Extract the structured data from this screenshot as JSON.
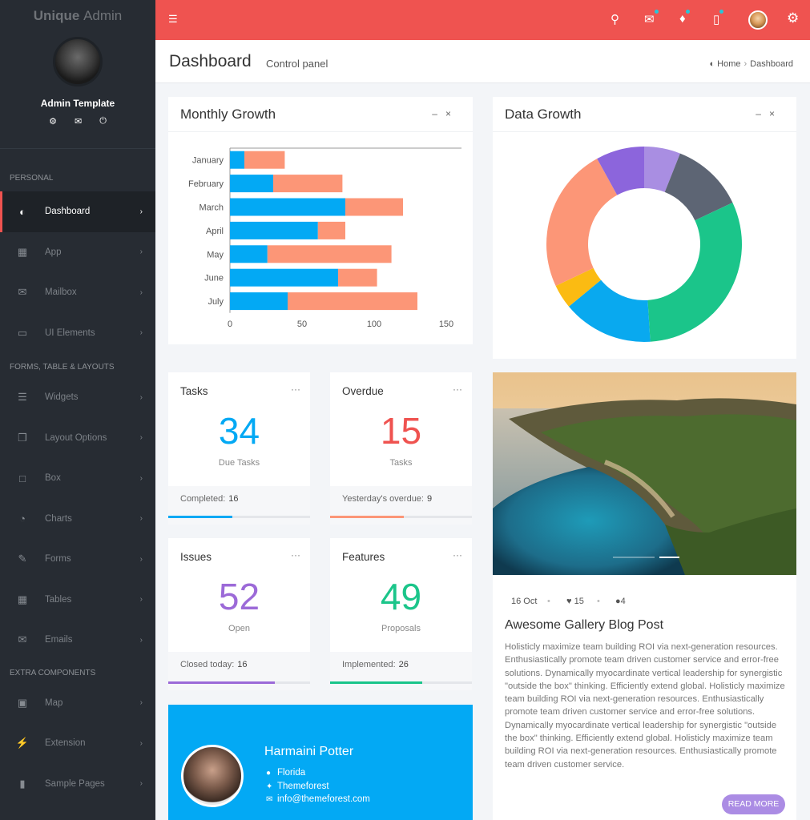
{
  "brand": {
    "name_bold": "Unique",
    "name_light": "Admin"
  },
  "profile": {
    "name": "Admin Template",
    "icons": [
      "gear-icon",
      "mail-icon",
      "power-icon"
    ]
  },
  "sidebar": {
    "sections": [
      "PERSONAL",
      "FORMS, TABLE & LAYOUTS",
      "EXTRA COMPONENTS"
    ],
    "items": [
      {
        "label": "Dashboard",
        "icon": "dashboard-icon",
        "active": true
      },
      {
        "label": "App",
        "icon": "grid-icon"
      },
      {
        "label": "Mailbox",
        "icon": "mail-icon"
      },
      {
        "label": "UI Elements",
        "icon": "laptop-icon"
      },
      {
        "label": "Widgets",
        "icon": "list-icon"
      },
      {
        "label": "Layout Options",
        "icon": "copy-icon"
      },
      {
        "label": "Box",
        "icon": "square-icon"
      },
      {
        "label": "Charts",
        "icon": "pie-icon"
      },
      {
        "label": "Forms",
        "icon": "edit-icon"
      },
      {
        "label": "Tables",
        "icon": "table-icon"
      },
      {
        "label": "Emails",
        "icon": "envelope-open-icon"
      },
      {
        "label": "Map",
        "icon": "map-icon"
      },
      {
        "label": "Extension",
        "icon": "plug-icon"
      },
      {
        "label": "Sample Pages",
        "icon": "file-icon"
      }
    ]
  },
  "topbar": {
    "icons": [
      "menu-icon",
      "search-icon",
      "mail-icon",
      "bell-icon",
      "chat-icon",
      "avatar",
      "gear-icon"
    ]
  },
  "page": {
    "title": "Dashboard",
    "subtitle": "Control panel",
    "breadcrumb": [
      "Home",
      "Dashboard"
    ]
  },
  "monthly_growth": {
    "title": "Monthly Growth"
  },
  "data_growth": {
    "title": "Data Growth"
  },
  "chart_data": [
    {
      "type": "bar",
      "orientation": "horizontal",
      "stacked": true,
      "title": "Monthly Growth",
      "categories": [
        "January",
        "February",
        "March",
        "April",
        "May",
        "June",
        "July"
      ],
      "series": [
        {
          "color": "#03a9f4",
          "values": [
            10,
            30,
            80,
            61,
            26,
            75,
            40
          ]
        },
        {
          "color": "#fc9677",
          "values": [
            28,
            48,
            40,
            19,
            86,
            27,
            90
          ]
        }
      ],
      "xticks": [
        "0",
        "50",
        "100",
        "150"
      ],
      "xlim": [
        0,
        155
      ]
    },
    {
      "type": "pie",
      "donut": true,
      "title": "Data Growth",
      "slices": [
        {
          "value": 6,
          "color": "#a98ee2"
        },
        {
          "value": 12,
          "color": "#5d6574"
        },
        {
          "value": 31,
          "color": "#1bc58a"
        },
        {
          "value": 15,
          "color": "#09a9ef"
        },
        {
          "value": 4,
          "color": "#fbbb12"
        },
        {
          "value": 24,
          "color": "#fc9677"
        },
        {
          "value": 8,
          "color": "#8c65dc"
        }
      ]
    }
  ],
  "stats": [
    {
      "title": "Tasks",
      "number": "34",
      "label": "Due Tasks",
      "foot_label": "Completed:",
      "foot_value": "16",
      "color": "#03a9f4",
      "progress": 0.45
    },
    {
      "title": "Overdue",
      "number": "15",
      "label": "Tasks",
      "foot_label": "Yesterday's overdue:",
      "foot_value": "9",
      "color": "#ef5350",
      "bar_color": "#fc9677",
      "progress": 0.52
    },
    {
      "title": "Issues",
      "number": "52",
      "label": "Open",
      "foot_label": "Closed today:",
      "foot_value": "16",
      "color": "#9c6ad8",
      "progress": 0.75
    },
    {
      "title": "Features",
      "number": "49",
      "label": "Proposals",
      "foot_label": "Implemented:",
      "foot_value": "26",
      "color": "#1bc58a",
      "progress": 0.65
    }
  ],
  "profile_card": {
    "name": "Harmaini Potter",
    "location": "Florida",
    "twitter": "Themeforest",
    "email": "info@themeforest.com"
  },
  "blog": {
    "date": "16 Oct",
    "likes": "15",
    "comments": "4",
    "title": "Awesome Gallery Blog Post",
    "text": "Holisticly maximize team building ROI via next-generation resources. Enthusiastically promote team driven customer service and error-free solutions. Dynamically myocardinate vertical leadership for synergistic \"outside the box\" thinking. Efficiently extend global. Holisticly maximize team building ROI via next-generation resources. Enthusiastically promote team driven customer service and error-free solutions. Dynamically myocardinate vertical leadership for synergistic \"outside the box\" thinking. Efficiently extend global. Holisticly maximize team building ROI via next-generation resources. Enthusiastically promote team driven customer service.",
    "read_more": "READ MORE"
  }
}
